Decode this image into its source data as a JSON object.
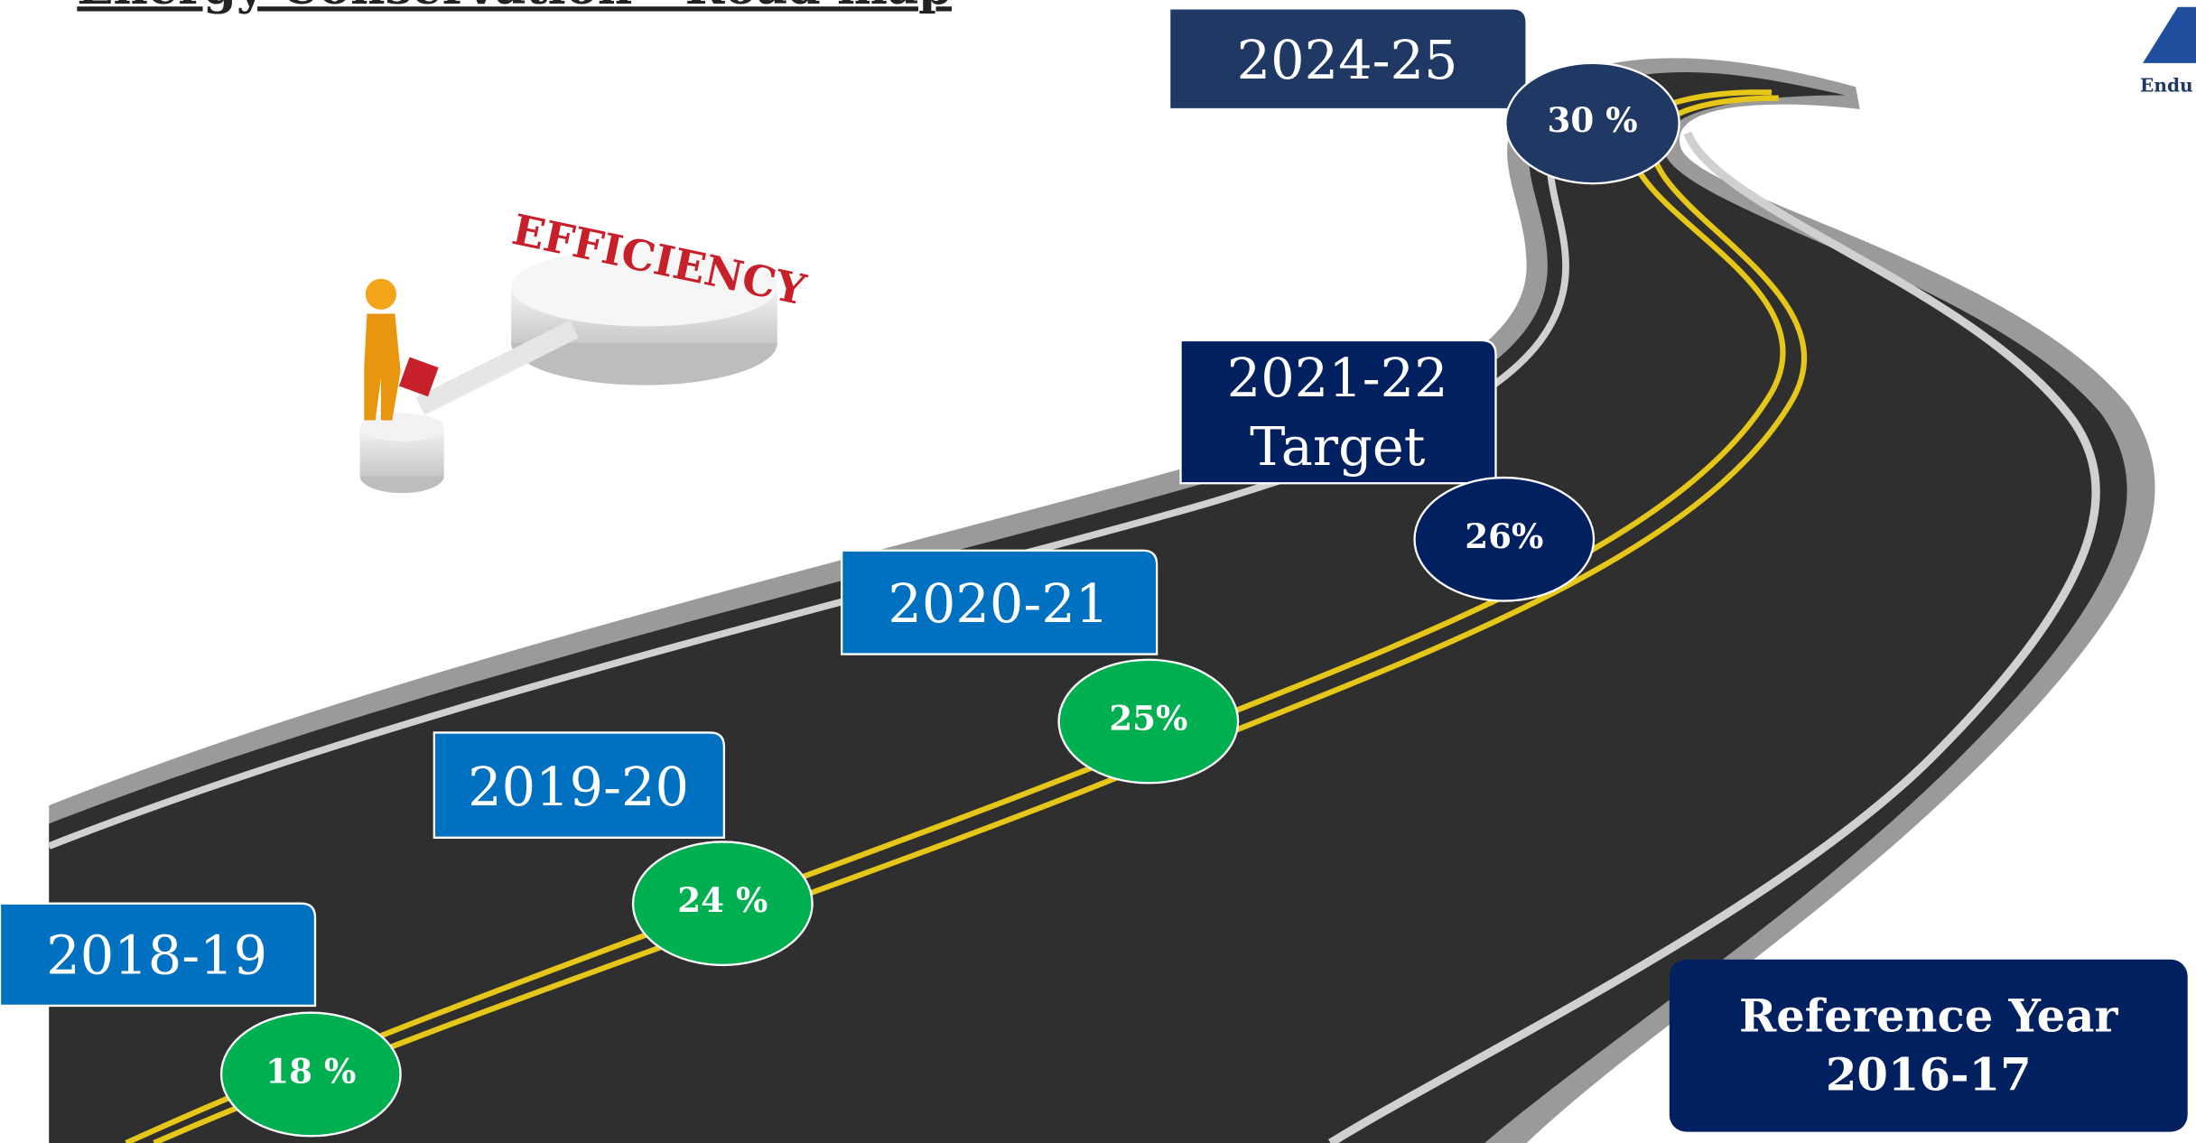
{
  "title": "Energy Conservation - Road map",
  "illustration_text": "EFFICIENCY",
  "logo_text": "Endu",
  "milestones": [
    {
      "period": "2018-19",
      "percent": "18 %"
    },
    {
      "period": "2019-20",
      "percent": "24 %"
    },
    {
      "period": "2020-21",
      "percent": "25%"
    },
    {
      "period": "2021-22",
      "note": "Target",
      "percent": "26%"
    },
    {
      "period": "2024-25",
      "percent": "30 %"
    }
  ],
  "reference": {
    "label": "Reference Year",
    "year": "2016-17"
  }
}
